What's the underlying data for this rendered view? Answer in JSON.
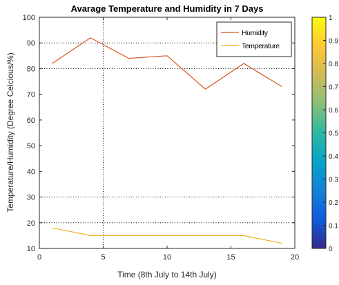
{
  "chart_data": {
    "type": "line",
    "title": "Avarage Temperature and Humidity in 7 Days",
    "xlabel": "Time (8th July to 14th July)",
    "ylabel": "Temperature/Humidity (Degree Celcious/%)",
    "xlim": [
      0,
      20
    ],
    "ylim": [
      10,
      100
    ],
    "x_ticks": [
      0,
      5,
      10,
      15,
      20
    ],
    "y_ticks": [
      10,
      20,
      30,
      40,
      50,
      60,
      70,
      80,
      90,
      100
    ],
    "series": [
      {
        "name": "Humidity",
        "color": "#d95319",
        "x": [
          1,
          4,
          7,
          10,
          13,
          16,
          19
        ],
        "y": [
          82,
          92,
          84,
          85,
          72,
          82,
          73
        ]
      },
      {
        "name": "Temperature",
        "color": "#edb120",
        "x": [
          1,
          4,
          7,
          10,
          13,
          16,
          19
        ],
        "y": [
          18,
          15,
          15,
          15,
          15,
          15,
          12
        ]
      }
    ],
    "reference_lines": {
      "horizontal": [
        20,
        30,
        80,
        90
      ],
      "vertical": [
        5
      ]
    },
    "grid": false,
    "legend_position": "top-right",
    "colorbar": {
      "colormap": "parula",
      "range": [
        0,
        1
      ],
      "ticks": [
        "0",
        "0.1",
        "0.2",
        "0.3",
        "0.4",
        "0.5",
        "0.6",
        "0.7",
        "0.8",
        "0.9",
        "1"
      ],
      "colors": [
        "#352a87",
        "#0f5cdd",
        "#1481d6",
        "#06a4ca",
        "#2eb7a4",
        "#87bf77",
        "#d1bb59",
        "#fec832",
        "#f9fb0e"
      ]
    }
  }
}
